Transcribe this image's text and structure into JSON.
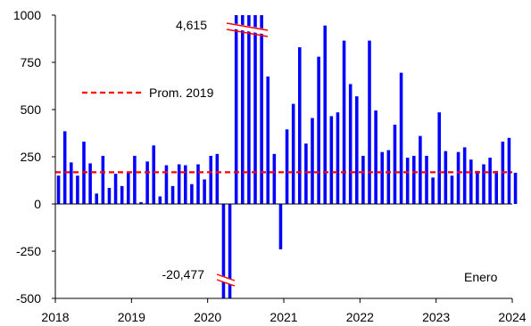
{
  "chart_data": {
    "type": "bar",
    "title": "",
    "xlabel": "",
    "ylabel": "",
    "ylim": [
      -500,
      1000
    ],
    "xlim": [
      2018,
      2024
    ],
    "yticks": [
      1000,
      750,
      500,
      250,
      0,
      -250,
      -500
    ],
    "ytick_labels": [
      "1000",
      "750",
      "500",
      "250",
      "0",
      "-250",
      "-500"
    ],
    "xticks": [
      2018,
      2019,
      2020,
      2021,
      2022,
      2023,
      2024
    ],
    "xtick_labels": [
      "2018",
      "2019",
      "2020",
      "2021",
      "2022",
      "2023",
      "2024"
    ],
    "grid": false,
    "bar_color": "#0000FF",
    "x": [
      "2018-01",
      "2018-02",
      "2018-03",
      "2018-04",
      "2018-05",
      "2018-06",
      "2018-07",
      "2018-08",
      "2018-09",
      "2018-10",
      "2018-11",
      "2018-12",
      "2019-01",
      "2019-02",
      "2019-03",
      "2019-04",
      "2019-05",
      "2019-06",
      "2019-07",
      "2019-08",
      "2019-09",
      "2019-10",
      "2019-11",
      "2019-12",
      "2020-01",
      "2020-02",
      "2020-03",
      "2020-04",
      "2020-05",
      "2020-06",
      "2020-07",
      "2020-08",
      "2020-09",
      "2020-10",
      "2020-11",
      "2020-12",
      "2021-01",
      "2021-02",
      "2021-03",
      "2021-04",
      "2021-05",
      "2021-06",
      "2021-07",
      "2021-08",
      "2021-09",
      "2021-10",
      "2021-11",
      "2021-12",
      "2022-01",
      "2022-02",
      "2022-03",
      "2022-04",
      "2022-05",
      "2022-06",
      "2022-07",
      "2022-08",
      "2022-09",
      "2022-10",
      "2022-11",
      "2022-12",
      "2023-01",
      "2023-02",
      "2023-03",
      "2023-04",
      "2023-05",
      "2023-06",
      "2023-07",
      "2023-08",
      "2023-09",
      "2023-10",
      "2023-11",
      "2023-12",
      "2024-01"
    ],
    "values": [
      150,
      385,
      220,
      150,
      330,
      215,
      55,
      255,
      85,
      160,
      95,
      170,
      255,
      10,
      225,
      310,
      40,
      205,
      95,
      210,
      205,
      105,
      210,
      130,
      255,
      265,
      -500,
      -500,
      1000,
      1000,
      1000,
      1000,
      1000,
      675,
      265,
      -240,
      395,
      530,
      830,
      320,
      455,
      780,
      945,
      465,
      485,
      865,
      635,
      570,
      255,
      865,
      495,
      275,
      285,
      420,
      695,
      245,
      255,
      360,
      255,
      140,
      485,
      280,
      150,
      275,
      300,
      235,
      175,
      210,
      245,
      175,
      330,
      350,
      165
    ],
    "reference_line": {
      "label": "Prom. 2019",
      "value": 168,
      "color": "#FF0000",
      "style": "dashed"
    },
    "annotations": {
      "high_break_value": "4,615",
      "low_break_value": "-20,477",
      "corner_note": "Enero"
    }
  }
}
